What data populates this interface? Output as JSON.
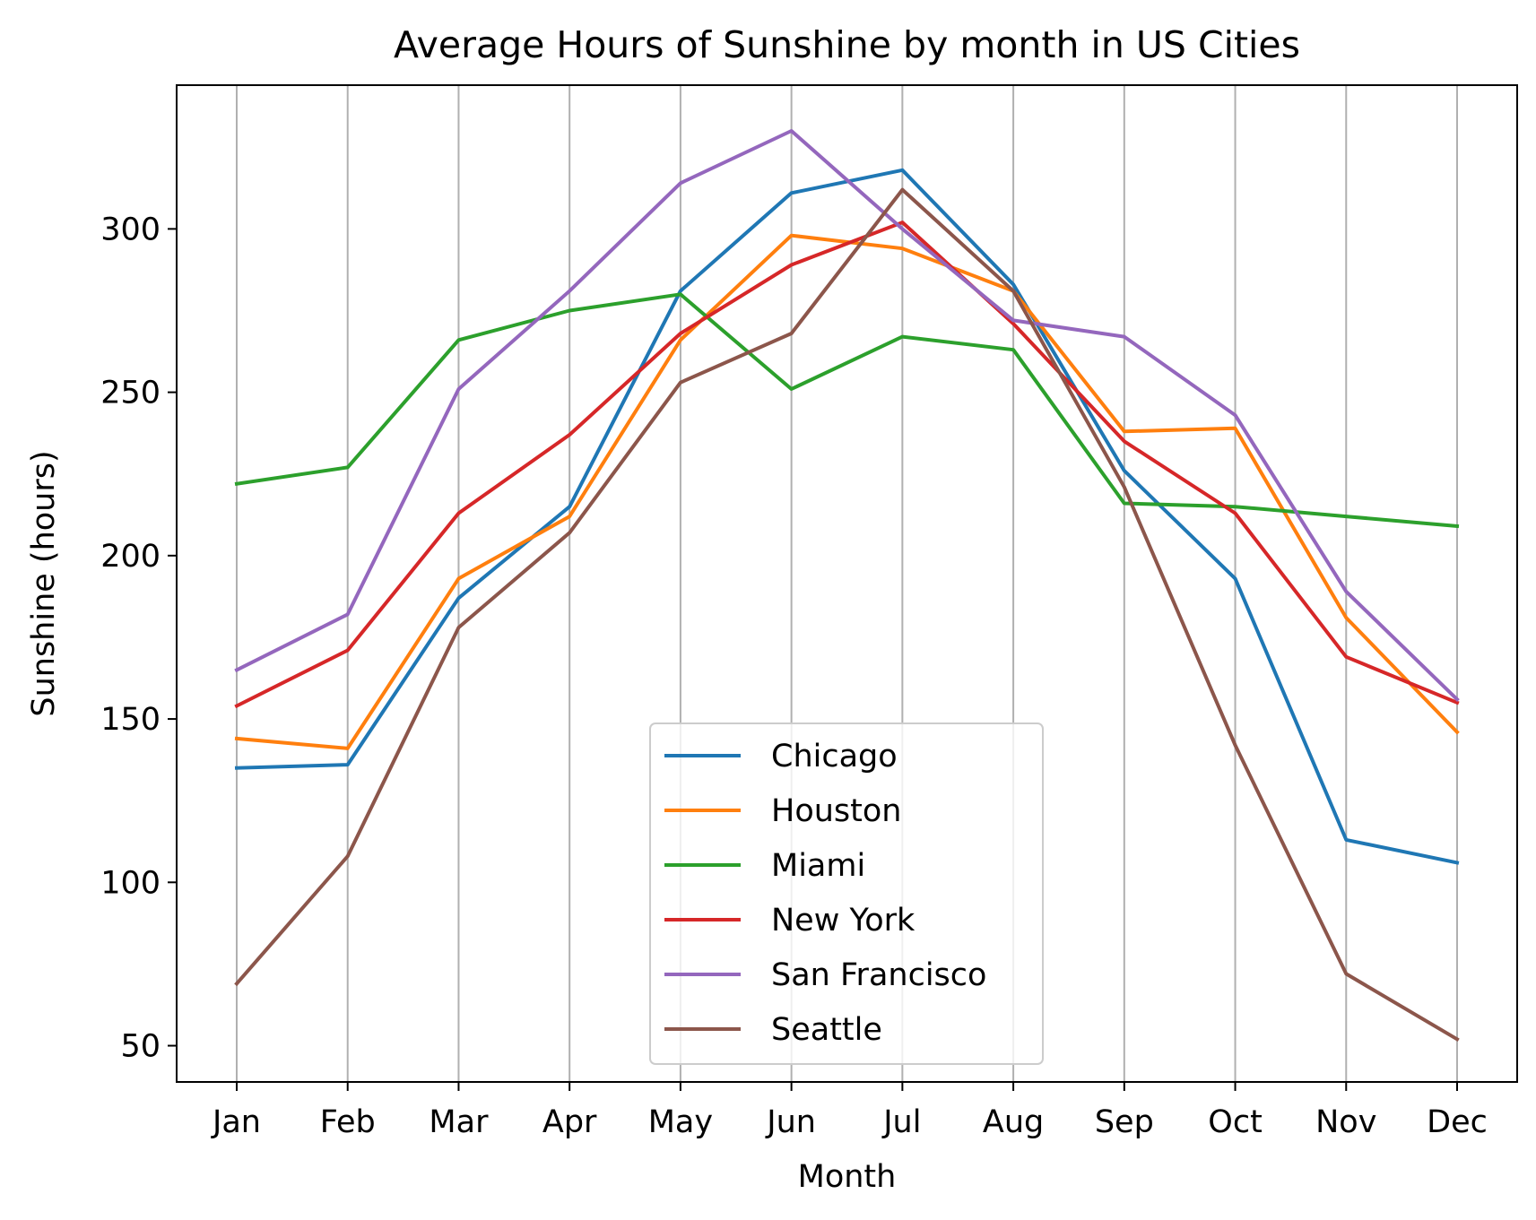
{
  "chart_data": {
    "type": "line",
    "title": "Average Hours of Sunshine by month in US Cities",
    "xlabel": "Month",
    "ylabel": "Sunshine (hours)",
    "categories": [
      "Jan",
      "Feb",
      "Mar",
      "Apr",
      "May",
      "Jun",
      "Jul",
      "Aug",
      "Sep",
      "Oct",
      "Nov",
      "Dec"
    ],
    "ylim": [
      38.9,
      344
    ],
    "yticks": [
      50,
      100,
      150,
      200,
      250,
      300
    ],
    "grid": "vertical",
    "legend_position": "lower-center",
    "series": [
      {
        "name": "Chicago",
        "color": "#1f77b4",
        "values": [
          135,
          136,
          187,
          215,
          281,
          311,
          318,
          283,
          226,
          193,
          113,
          106
        ]
      },
      {
        "name": "Houston",
        "color": "#ff7f0e",
        "values": [
          144,
          141,
          193,
          212,
          266,
          298,
          294,
          281,
          238,
          239,
          181,
          146
        ]
      },
      {
        "name": "Miami",
        "color": "#2ca02c",
        "values": [
          222,
          227,
          266,
          275,
          280,
          251,
          267,
          263,
          216,
          215,
          212,
          209
        ]
      },
      {
        "name": "New York",
        "color": "#d62728",
        "values": [
          154,
          171,
          213,
          237,
          268,
          289,
          302,
          271,
          235,
          213,
          169,
          155
        ]
      },
      {
        "name": "San Francisco",
        "color": "#9467bd",
        "values": [
          165,
          182,
          251,
          281,
          314,
          330,
          300,
          272,
          267,
          243,
          189,
          156
        ]
      },
      {
        "name": "Seattle",
        "color": "#8c564b",
        "values": [
          69,
          108,
          178,
          207,
          253,
          268,
          312,
          281,
          221,
          142,
          72,
          52
        ]
      }
    ]
  }
}
